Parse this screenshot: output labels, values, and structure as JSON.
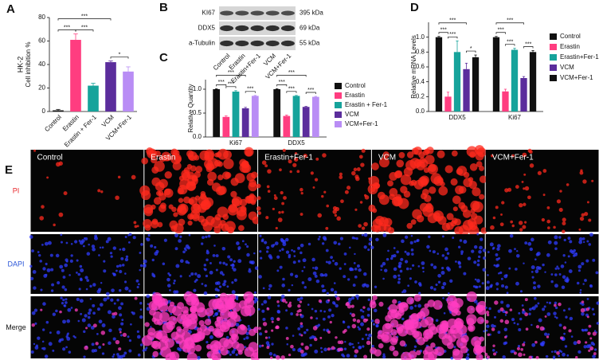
{
  "panel_labels": [
    "A",
    "B",
    "C",
    "D",
    "E"
  ],
  "chart_data": [
    {
      "type": "bar",
      "title": "HK-2",
      "ylabel": "Cell inhibition %",
      "categories": [
        "Control",
        "Erastin",
        "Erastin + Fer-1",
        "VCM",
        "VCM+Fer-1"
      ],
      "values": [
        1,
        61,
        22,
        42,
        34
      ],
      "errors": [
        0.8,
        5,
        2,
        1,
        4
      ],
      "colors": [
        "#111111",
        "#ff3d80",
        "#16a39b",
        "#5b2d9c",
        "#b98df5"
      ],
      "ylim": [
        0,
        80
      ],
      "yticks": [
        0,
        20,
        40,
        60,
        80
      ],
      "annotations": [
        "***",
        "***",
        "***",
        "*"
      ]
    },
    {
      "type": "grouped_bar",
      "ylabel": "Relative Quantity",
      "categories": [
        "Ki67",
        "DDX5"
      ],
      "series": [
        {
          "name": "Control",
          "color": "#111111",
          "values": [
            1.0,
            1.0
          ],
          "errors": [
            0.01,
            0.01
          ]
        },
        {
          "name": "Erastin",
          "color": "#ff3d80",
          "values": [
            0.42,
            0.44
          ],
          "errors": [
            0.02,
            0.02
          ]
        },
        {
          "name": "Erastin + Fer-1",
          "color": "#16a39b",
          "values": [
            0.95,
            0.86
          ],
          "errors": [
            0.02,
            0.01
          ]
        },
        {
          "name": "VCM",
          "color": "#5b2d9c",
          "values": [
            0.6,
            0.63
          ],
          "errors": [
            0.02,
            0.01
          ]
        },
        {
          "name": "VCM+Fer-1",
          "color": "#b98df5",
          "values": [
            0.86,
            0.84
          ],
          "errors": [
            0.01,
            0.01
          ]
        }
      ],
      "ylim": [
        0,
        1.2
      ],
      "yticks": [
        {
          "value": 0,
          "label": "0.0"
        },
        0.5,
        {
          "value": 1,
          "label": "1.0"
        }
      ],
      "annotations": [
        [
          "***",
          "***",
          "***",
          "***"
        ],
        [
          "***",
          "***",
          "***",
          "***"
        ]
      ]
    },
    {
      "type": "grouped_bar",
      "ylabel": "Relative mRNA Levels",
      "categories": [
        "DDX5",
        "Ki67"
      ],
      "series": [
        {
          "name": "Control",
          "color": "#111111",
          "values": [
            1.0,
            1.0
          ],
          "errors": [
            0.01,
            0.01
          ]
        },
        {
          "name": "Erastin",
          "color": "#ff3d80",
          "values": [
            0.2,
            0.27
          ],
          "errors": [
            0.06,
            0.03
          ]
        },
        {
          "name": "Erastin+Fer-1",
          "color": "#16a39b",
          "values": [
            0.8,
            0.83
          ],
          "errors": [
            0.15,
            0.02
          ]
        },
        {
          "name": "VCM",
          "color": "#5b2d9c",
          "values": [
            0.57,
            0.45
          ],
          "errors": [
            0.08,
            0.02
          ]
        },
        {
          "name": "VCM+Fer-1",
          "color": "#111111",
          "values": [
            0.73,
            0.8
          ],
          "errors": [
            0.03,
            0.02
          ]
        }
      ],
      "ylim": [
        0,
        1.2
      ],
      "yticks": [
        {
          "value": 0,
          "label": "0.0"
        },
        0.2,
        0.4,
        0.6,
        0.8,
        {
          "value": 1,
          "label": "1.0"
        }
      ],
      "annotations": [
        [
          "***",
          "***",
          "***",
          "*"
        ],
        [
          "***",
          "***",
          "***",
          "***"
        ]
      ]
    }
  ],
  "blot": {
    "proteins": [
      "KI67",
      "DDX5",
      "a-Tubulin"
    ],
    "sizes": [
      "395 kDa",
      "69 kDa",
      "55 kDa"
    ],
    "lanes": [
      "Control",
      "Erastin",
      "Erastin+Fer-1",
      "VCM",
      "VCM+Fer-1"
    ]
  },
  "micrograph": {
    "columns": [
      "Control",
      "Erastin",
      "Erastin+Fer-1",
      "VCM",
      "VCM+Fer-1"
    ],
    "rows": [
      "PI",
      "DAPI",
      "Merge"
    ]
  }
}
